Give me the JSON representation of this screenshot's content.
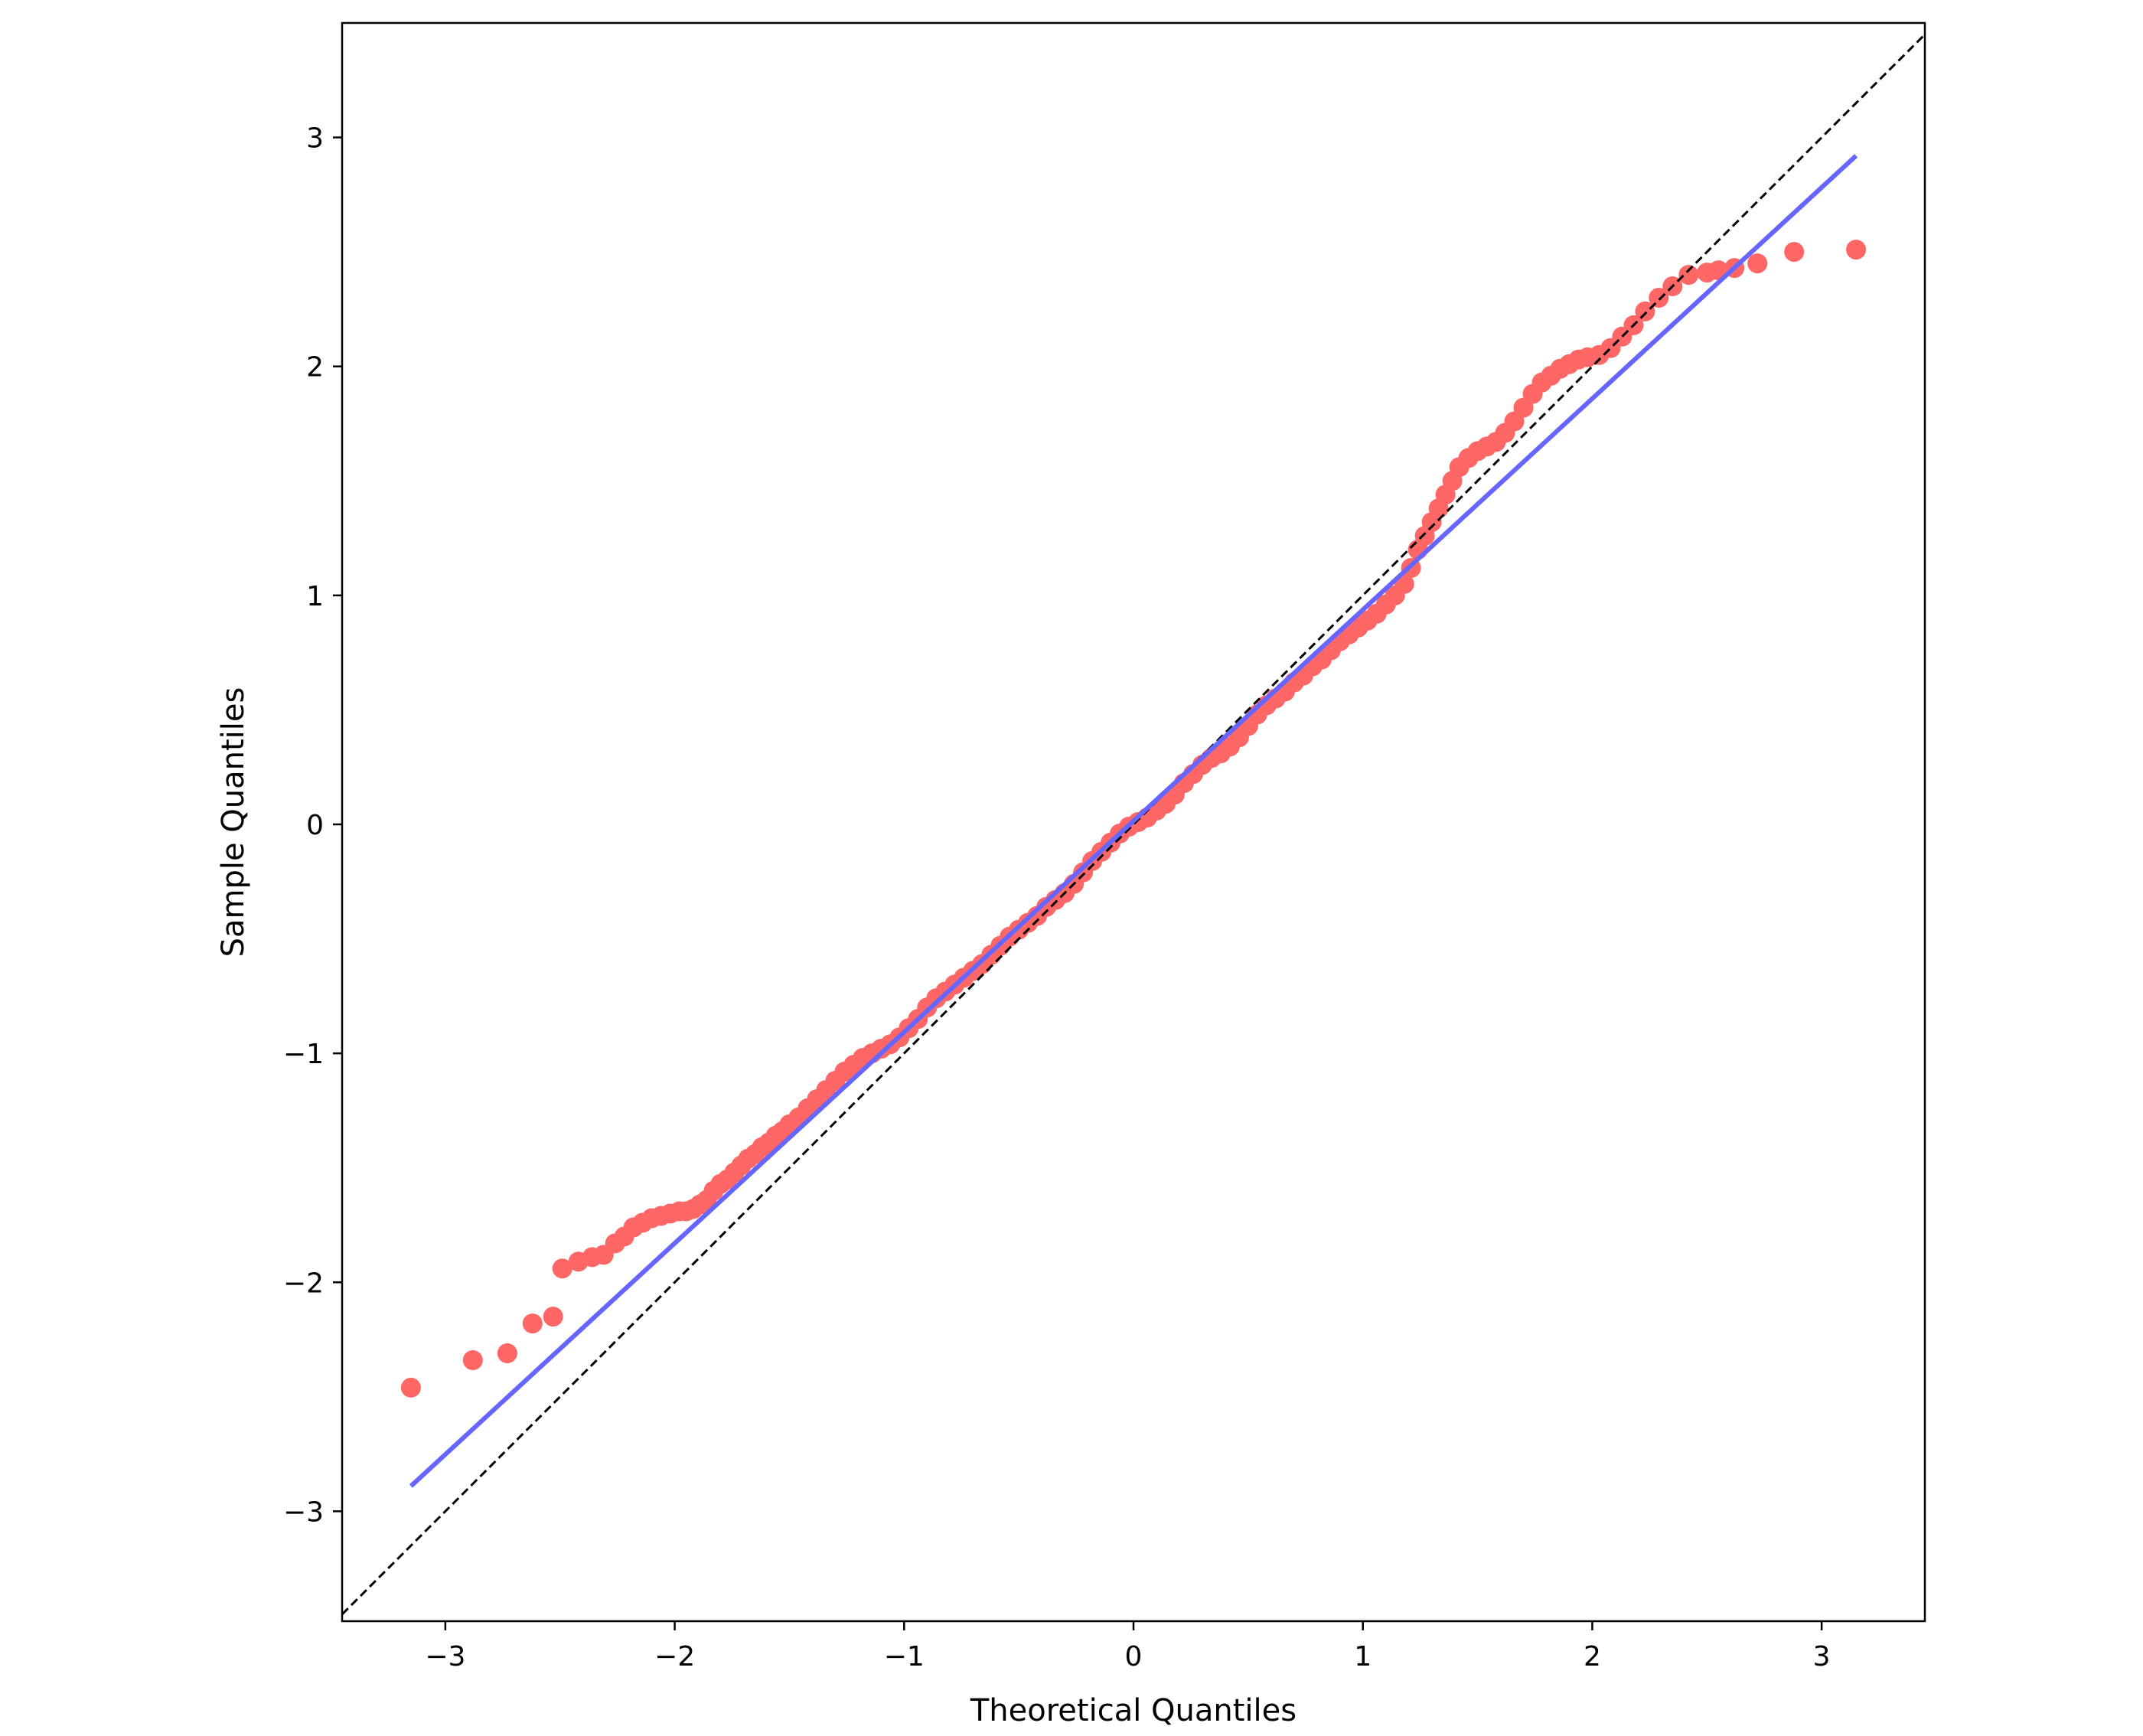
{
  "chart_data": {
    "type": "scatter",
    "title": "",
    "xlabel": "Theoretical Quantiles",
    "ylabel": "Sample Quantiles",
    "xlim": [
      -3.45,
      3.45
    ],
    "ylim": [
      -3.48,
      3.5
    ],
    "xticks": [
      {
        "value": -3,
        "label": "−3"
      },
      {
        "value": -2,
        "label": "−2"
      },
      {
        "value": -1,
        "label": "−1"
      },
      {
        "value": 0,
        "label": "0"
      },
      {
        "value": 1,
        "label": "1"
      },
      {
        "value": 2,
        "label": "2"
      },
      {
        "value": 3,
        "label": "3"
      }
    ],
    "yticks": [
      {
        "value": -3,
        "label": "−3"
      },
      {
        "value": -2,
        "label": "−2"
      },
      {
        "value": -1,
        "label": "−1"
      },
      {
        "value": 0,
        "label": "0"
      },
      {
        "value": 1,
        "label": "1"
      },
      {
        "value": 2,
        "label": "2"
      },
      {
        "value": 3,
        "label": "3"
      }
    ],
    "grid": false,
    "legend": "none",
    "colors": {
      "points": "#ff6666",
      "fit_line": "#6666ff",
      "reference_line": "#000000",
      "axes": "#000000"
    },
    "series": [
      {
        "kind": "scatter",
        "points": [
          [
            -3.15,
            -2.46
          ],
          [
            -2.88,
            -2.34
          ],
          [
            -2.73,
            -2.31
          ],
          [
            -2.62,
            -2.18
          ],
          [
            -2.53,
            -2.15
          ],
          [
            -2.49,
            -1.94
          ],
          [
            -2.42,
            -1.91
          ],
          [
            -2.36,
            -1.89
          ],
          [
            -2.31,
            -1.88
          ],
          [
            -2.26,
            -1.83
          ],
          [
            -2.22,
            -1.8
          ],
          [
            -2.18,
            -1.76
          ],
          [
            -2.14,
            -1.74
          ],
          [
            -2.1,
            -1.72
          ],
          [
            -2.06,
            -1.71
          ],
          [
            -2.02,
            -1.7
          ],
          [
            -1.98,
            -1.69
          ],
          [
            -1.95,
            -1.69
          ],
          [
            -1.92,
            -1.68
          ],
          [
            -1.89,
            -1.66
          ],
          [
            -1.86,
            -1.64
          ],
          [
            -1.83,
            -1.6
          ],
          [
            -1.8,
            -1.57
          ],
          [
            -1.77,
            -1.55
          ],
          [
            -1.74,
            -1.52
          ],
          [
            -1.71,
            -1.49
          ],
          [
            -1.68,
            -1.46
          ],
          [
            -1.65,
            -1.44
          ],
          [
            -1.62,
            -1.41
          ],
          [
            -1.59,
            -1.39
          ],
          [
            -1.56,
            -1.36
          ],
          [
            -1.53,
            -1.34
          ],
          [
            -1.5,
            -1.31
          ],
          [
            -1.46,
            -1.28
          ],
          [
            -1.42,
            -1.24
          ],
          [
            -1.38,
            -1.2
          ],
          [
            -1.34,
            -1.16
          ],
          [
            -1.3,
            -1.12
          ],
          [
            -1.26,
            -1.08
          ],
          [
            -1.22,
            -1.05
          ],
          [
            -1.18,
            -1.02
          ],
          [
            -1.14,
            -1.0
          ],
          [
            -1.1,
            -0.98
          ],
          [
            -1.06,
            -0.96
          ],
          [
            -1.02,
            -0.93
          ],
          [
            -0.98,
            -0.89
          ],
          [
            -0.94,
            -0.85
          ],
          [
            -0.9,
            -0.8
          ],
          [
            -0.86,
            -0.76
          ],
          [
            -0.82,
            -0.73
          ],
          [
            -0.78,
            -0.7
          ],
          [
            -0.74,
            -0.67
          ],
          [
            -0.7,
            -0.64
          ],
          [
            -0.66,
            -0.61
          ],
          [
            -0.62,
            -0.57
          ],
          [
            -0.58,
            -0.53
          ],
          [
            -0.54,
            -0.49
          ],
          [
            -0.5,
            -0.46
          ],
          [
            -0.46,
            -0.43
          ],
          [
            -0.42,
            -0.4
          ],
          [
            -0.38,
            -0.36
          ],
          [
            -0.34,
            -0.33
          ],
          [
            -0.3,
            -0.3
          ],
          [
            -0.26,
            -0.26
          ],
          [
            -0.22,
            -0.21
          ],
          [
            -0.18,
            -0.16
          ],
          [
            -0.14,
            -0.12
          ],
          [
            -0.1,
            -0.08
          ],
          [
            -0.06,
            -0.04
          ],
          [
            -0.02,
            -0.01
          ],
          [
            0.02,
            0.01
          ],
          [
            0.06,
            0.03
          ],
          [
            0.1,
            0.06
          ],
          [
            0.14,
            0.09
          ],
          [
            0.18,
            0.13
          ],
          [
            0.22,
            0.18
          ],
          [
            0.26,
            0.22
          ],
          [
            0.3,
            0.26
          ],
          [
            0.34,
            0.29
          ],
          [
            0.38,
            0.31
          ],
          [
            0.42,
            0.34
          ],
          [
            0.46,
            0.38
          ],
          [
            0.5,
            0.43
          ],
          [
            0.54,
            0.48
          ],
          [
            0.58,
            0.52
          ],
          [
            0.62,
            0.55
          ],
          [
            0.66,
            0.58
          ],
          [
            0.7,
            0.62
          ],
          [
            0.74,
            0.65
          ],
          [
            0.78,
            0.69
          ],
          [
            0.82,
            0.72
          ],
          [
            0.86,
            0.76
          ],
          [
            0.9,
            0.8
          ],
          [
            0.94,
            0.83
          ],
          [
            0.98,
            0.86
          ],
          [
            1.02,
            0.89
          ],
          [
            1.06,
            0.92
          ],
          [
            1.1,
            0.96
          ],
          [
            1.14,
            1.0
          ],
          [
            1.18,
            1.05
          ],
          [
            1.21,
            1.12
          ],
          [
            1.24,
            1.2
          ],
          [
            1.27,
            1.26
          ],
          [
            1.3,
            1.32
          ],
          [
            1.33,
            1.38
          ],
          [
            1.36,
            1.44
          ],
          [
            1.39,
            1.5
          ],
          [
            1.42,
            1.56
          ],
          [
            1.46,
            1.6
          ],
          [
            1.5,
            1.63
          ],
          [
            1.54,
            1.65
          ],
          [
            1.58,
            1.67
          ],
          [
            1.62,
            1.71
          ],
          [
            1.66,
            1.76
          ],
          [
            1.7,
            1.82
          ],
          [
            1.74,
            1.88
          ],
          [
            1.78,
            1.93
          ],
          [
            1.82,
            1.96
          ],
          [
            1.86,
            1.99
          ],
          [
            1.9,
            2.01
          ],
          [
            1.94,
            2.03
          ],
          [
            1.98,
            2.04
          ],
          [
            2.03,
            2.05
          ],
          [
            2.08,
            2.08
          ],
          [
            2.13,
            2.13
          ],
          [
            2.18,
            2.18
          ],
          [
            2.23,
            2.24
          ],
          [
            2.29,
            2.3
          ],
          [
            2.35,
            2.35
          ],
          [
            2.42,
            2.4
          ],
          [
            2.5,
            2.41
          ],
          [
            2.55,
            2.42
          ],
          [
            2.62,
            2.43
          ],
          [
            2.72,
            2.45
          ],
          [
            2.88,
            2.5
          ],
          [
            3.15,
            2.51
          ]
        ]
      },
      {
        "kind": "fit-line",
        "points": [
          [
            -3.15,
            -2.89
          ],
          [
            3.15,
            2.92
          ]
        ]
      },
      {
        "kind": "reference-line",
        "points": [
          [
            -3.45,
            -3.45
          ],
          [
            3.45,
            3.45
          ]
        ]
      }
    ]
  }
}
